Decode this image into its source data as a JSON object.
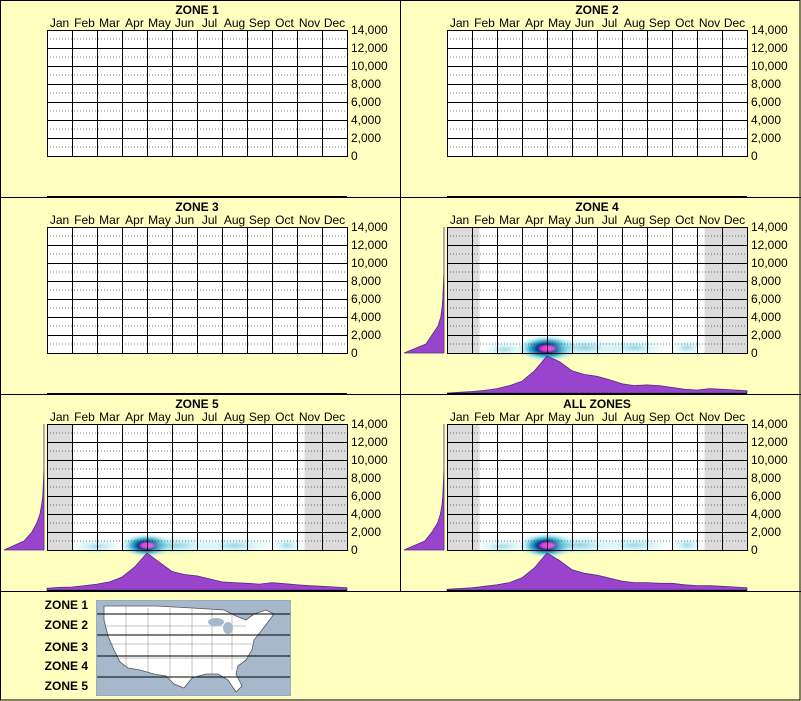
{
  "months": [
    "Jan",
    "Feb",
    "Mar",
    "Apr",
    "May",
    "Jun",
    "Jul",
    "Aug",
    "Sep",
    "Oct",
    "Nov",
    "Dec"
  ],
  "y_ticks": [
    "14,000",
    "12,000",
    "10,000",
    "8,000",
    "6,000",
    "4,000",
    "2,000",
    "0"
  ],
  "colors": {
    "background": "#ffffc0",
    "season_shade": "#dcdcdc",
    "season_light": "#eeeeee",
    "density": "#9944cc",
    "heat_outer": "#a8e8f0",
    "heat_mid": "#2aa8c8",
    "heat_inner": "#003c8c",
    "heat_peak": "#ff2bd6"
  },
  "legend": {
    "zones": [
      "ZONE 1",
      "ZONE 2",
      "ZONE 3",
      "ZONE 4",
      "ZONE 5"
    ],
    "map": "us-map-with-zone-bands"
  },
  "chart_data": [
    {
      "type": "heatmap",
      "title": "ZONE 1",
      "x_categories": [
        "Jan",
        "Feb",
        "Mar",
        "Apr",
        "May",
        "Jun",
        "Jul",
        "Aug",
        "Sep",
        "Oct",
        "Nov",
        "Dec"
      ],
      "ylim": [
        0,
        14000
      ],
      "has_data": false,
      "season_shade": [],
      "hotspots": [],
      "month_density": [],
      "elevation_density": []
    },
    {
      "type": "heatmap",
      "title": "ZONE 2",
      "x_categories": [
        "Jan",
        "Feb",
        "Mar",
        "Apr",
        "May",
        "Jun",
        "Jul",
        "Aug",
        "Sep",
        "Oct",
        "Nov",
        "Dec"
      ],
      "ylim": [
        0,
        14000
      ],
      "has_data": false,
      "season_shade": [],
      "hotspots": [],
      "month_density": [],
      "elevation_density": []
    },
    {
      "type": "heatmap",
      "title": "ZONE 3",
      "x_categories": [
        "Jan",
        "Feb",
        "Mar",
        "Apr",
        "May",
        "Jun",
        "Jul",
        "Aug",
        "Sep",
        "Oct",
        "Nov",
        "Dec"
      ],
      "ylim": [
        0,
        14000
      ],
      "has_data": false,
      "season_shade": [],
      "hotspots": [],
      "month_density": [],
      "elevation_density": []
    },
    {
      "type": "heatmap",
      "title": "ZONE 4",
      "x_categories": [
        "Jan",
        "Feb",
        "Mar",
        "Apr",
        "May",
        "Jun",
        "Jul",
        "Aug",
        "Sep",
        "Oct",
        "Nov",
        "Dec"
      ],
      "ylim": [
        0,
        14000
      ],
      "has_data": true,
      "season_shade": [
        [
          0,
          1.3
        ],
        [
          10.3,
          12
        ]
      ],
      "hotspots": [
        {
          "month": 4.0,
          "elev": 500,
          "strength": 1.0,
          "sx": 0.9,
          "sy": 900
        },
        {
          "month": 5.5,
          "elev": 600,
          "strength": 0.35,
          "sx": 1.3,
          "sy": 700
        },
        {
          "month": 7.5,
          "elev": 600,
          "strength": 0.25,
          "sx": 1.0,
          "sy": 600
        },
        {
          "month": 9.6,
          "elev": 600,
          "strength": 0.2,
          "sx": 0.5,
          "sy": 500
        },
        {
          "month": 2.3,
          "elev": 400,
          "strength": 0.15,
          "sx": 0.7,
          "sy": 400
        }
      ],
      "month_density": [
        0,
        0.02,
        0.04,
        0.07,
        0.12,
        0.2,
        0.32,
        0.6,
        1.0,
        0.85,
        0.6,
        0.5,
        0.45,
        0.36,
        0.25,
        0.2,
        0.22,
        0.2,
        0.15,
        0.1,
        0.08,
        0.12,
        0.1,
        0.08,
        0.06
      ],
      "elevation_density": [
        1.0,
        0.45,
        0.3,
        0.15,
        0.08,
        0.05,
        0.03,
        0.02,
        0.01,
        0,
        0,
        0,
        0,
        0,
        0
      ]
    },
    {
      "type": "heatmap",
      "title": "ZONE 5",
      "x_categories": [
        "Jan",
        "Feb",
        "Mar",
        "Apr",
        "May",
        "Jun",
        "Jul",
        "Aug",
        "Sep",
        "Oct",
        "Nov",
        "Dec"
      ],
      "ylim": [
        0,
        14000
      ],
      "has_data": true,
      "season_shade": [
        [
          0,
          1.0
        ],
        [
          10.3,
          12
        ]
      ],
      "hotspots": [
        {
          "month": 4.0,
          "elev": 500,
          "strength": 1.0,
          "sx": 0.8,
          "sy": 800
        },
        {
          "month": 5.2,
          "elev": 500,
          "strength": 0.35,
          "sx": 1.2,
          "sy": 700
        },
        {
          "month": 7.5,
          "elev": 500,
          "strength": 0.25,
          "sx": 1.2,
          "sy": 600
        },
        {
          "month": 9.6,
          "elev": 500,
          "strength": 0.2,
          "sx": 0.5,
          "sy": 500
        },
        {
          "month": 2.0,
          "elev": 400,
          "strength": 0.18,
          "sx": 0.8,
          "sy": 400
        }
      ],
      "month_density": [
        0.05,
        0.07,
        0.08,
        0.12,
        0.16,
        0.22,
        0.35,
        0.62,
        1.0,
        0.75,
        0.5,
        0.42,
        0.38,
        0.3,
        0.22,
        0.2,
        0.18,
        0.16,
        0.2,
        0.17,
        0.14,
        0.12,
        0.1,
        0.08,
        0.06
      ],
      "elevation_density": [
        1.0,
        0.5,
        0.3,
        0.18,
        0.1,
        0.06,
        0.03,
        0.02,
        0.01,
        0,
        0,
        0,
        0,
        0,
        0
      ]
    },
    {
      "type": "heatmap",
      "title": "ALL ZONES",
      "x_categories": [
        "Jan",
        "Feb",
        "Mar",
        "Apr",
        "May",
        "Jun",
        "Jul",
        "Aug",
        "Sep",
        "Oct",
        "Nov",
        "Dec"
      ],
      "ylim": [
        0,
        14000
      ],
      "has_data": true,
      "season_shade": [
        [
          0,
          1.3
        ],
        [
          10.3,
          12
        ]
      ],
      "hotspots": [
        {
          "month": 4.0,
          "elev": 500,
          "strength": 1.0,
          "sx": 0.85,
          "sy": 850
        },
        {
          "month": 5.3,
          "elev": 550,
          "strength": 0.35,
          "sx": 1.2,
          "sy": 700
        },
        {
          "month": 7.5,
          "elev": 550,
          "strength": 0.25,
          "sx": 1.1,
          "sy": 600
        },
        {
          "month": 9.6,
          "elev": 550,
          "strength": 0.22,
          "sx": 0.5,
          "sy": 500
        },
        {
          "month": 2.2,
          "elev": 400,
          "strength": 0.16,
          "sx": 0.8,
          "sy": 400
        }
      ],
      "month_density": [
        0.02,
        0.04,
        0.06,
        0.1,
        0.14,
        0.2,
        0.33,
        0.6,
        1.0,
        0.8,
        0.55,
        0.45,
        0.4,
        0.32,
        0.24,
        0.2,
        0.2,
        0.18,
        0.18,
        0.14,
        0.12,
        0.12,
        0.1,
        0.08,
        0.06
      ],
      "elevation_density": [
        1.0,
        0.48,
        0.3,
        0.16,
        0.09,
        0.05,
        0.03,
        0.02,
        0.01,
        0,
        0,
        0,
        0,
        0,
        0
      ]
    }
  ]
}
